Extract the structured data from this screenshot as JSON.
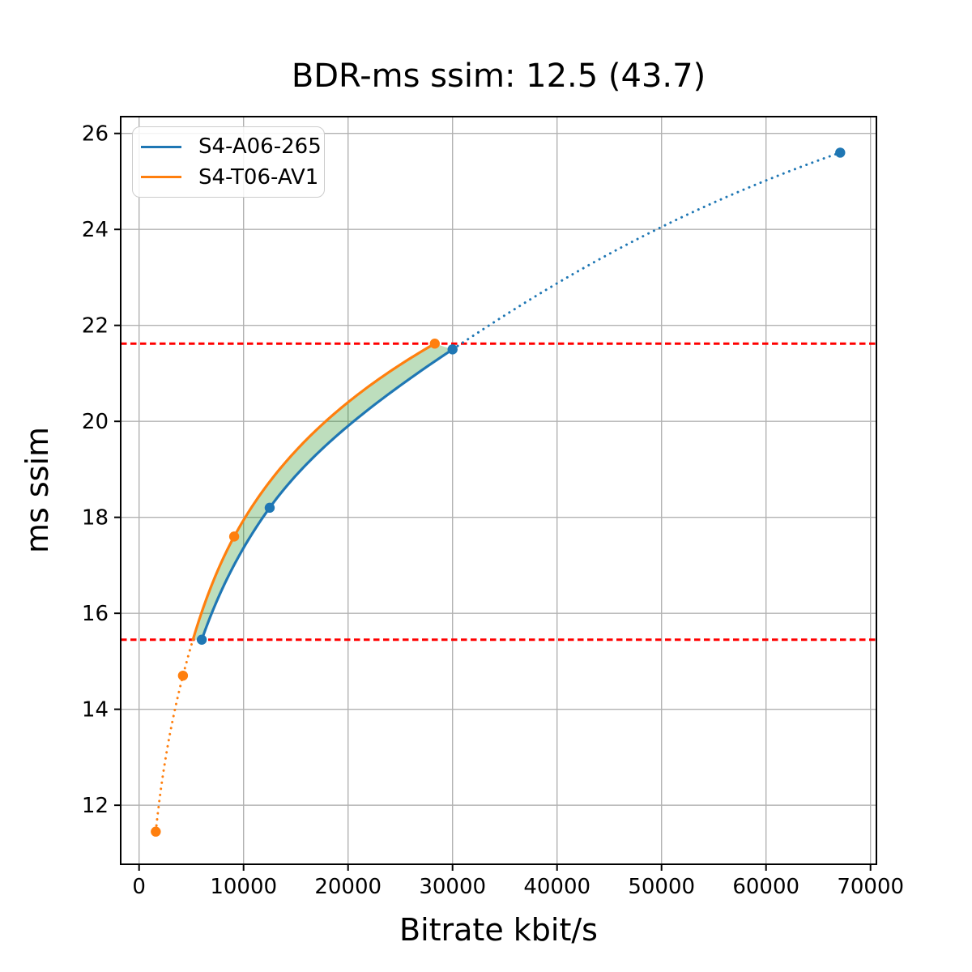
{
  "chart_data": {
    "type": "line",
    "title": "BDR-ms ssim: 12.5 (43.7)",
    "xlabel": "Bitrate kbit/s",
    "ylabel": "ms ssim",
    "xlim": [
      -1760,
      70565
    ],
    "ylim": [
      10.77,
      26.35
    ],
    "xticks": [
      0,
      10000,
      20000,
      30000,
      40000,
      50000,
      60000,
      70000
    ],
    "yticks": [
      12,
      14,
      16,
      18,
      20,
      22,
      24,
      26
    ],
    "grid": true,
    "grid_color": "#b2b2b2",
    "legend_position": "upper left",
    "interpolation": "monotone-cubic-in-log-bitrate",
    "series": [
      {
        "name": "S4-A06-265",
        "color": "#1f77b4",
        "points": [
          [
            6000,
            15.45
          ],
          [
            12500,
            18.2
          ],
          [
            30000,
            21.5
          ],
          [
            67100,
            25.6
          ]
        ],
        "segments": [
          {
            "style": "solid",
            "from_x": 6000,
            "to_x": 30000
          },
          {
            "style": "dotted",
            "from_x": 30000,
            "to_x": 67100
          }
        ]
      },
      {
        "name": "S4-T06-AV1",
        "color": "#ff7f0e",
        "points": [
          [
            1600,
            11.45
          ],
          [
            4200,
            14.7
          ],
          [
            9100,
            17.6
          ],
          [
            28300,
            21.62
          ]
        ],
        "segments": [
          {
            "style": "dotted",
            "from_x": 1600,
            "to_x": "guide_low"
          },
          {
            "style": "solid",
            "from_x": "guide_low",
            "to_x": 28300
          }
        ]
      }
    ],
    "guide_lines": {
      "color": "#ff0000",
      "style": "dashed",
      "y_values": [
        21.62,
        15.45
      ]
    },
    "fill_between": {
      "color": "rgba(0,128,0,0.26)",
      "between_series": [
        "S4-T06-AV1",
        "S4-A06-265"
      ],
      "y_range": [
        15.45,
        21.62
      ]
    }
  }
}
